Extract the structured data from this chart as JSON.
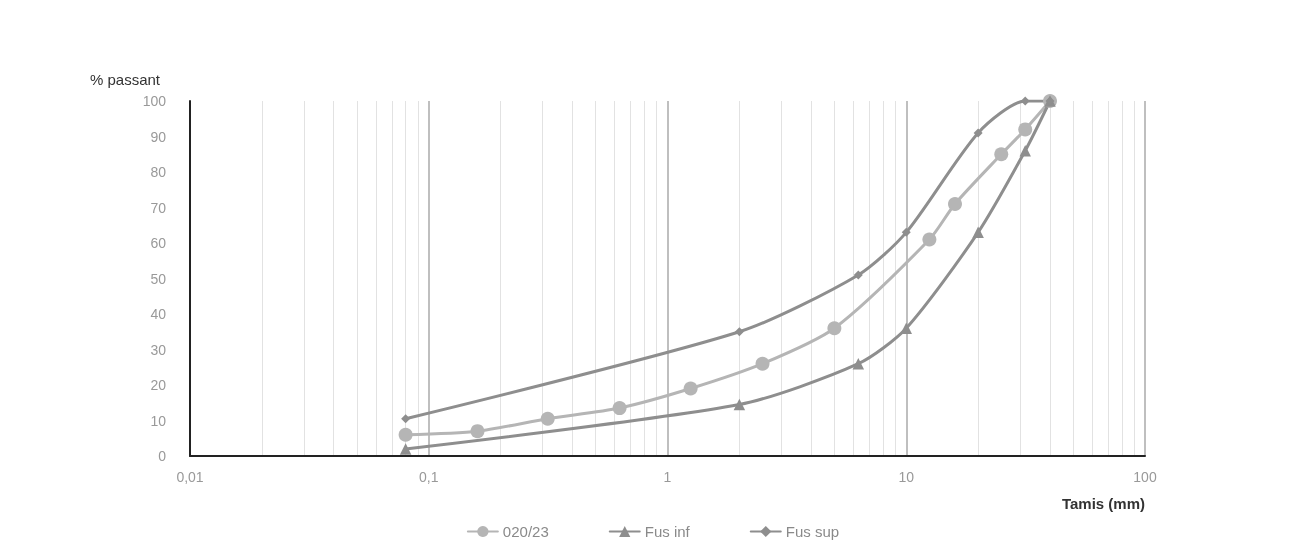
{
  "chart_data": {
    "type": "line",
    "xlabel": "Tamis (mm)",
    "ylabel": "% passant",
    "log": "x",
    "grid": "x",
    "legend": "bottom",
    "xlim": [
      0.01,
      100
    ],
    "xticks": [
      {
        "value": 0.01,
        "label": "0,01"
      },
      {
        "value": 0.1,
        "label": "0,1"
      },
      1,
      10,
      100
    ],
    "ylim": [
      0,
      100
    ],
    "yticks": [
      0,
      10,
      20,
      30,
      40,
      50,
      60,
      70,
      80,
      90,
      100
    ],
    "line_style": "solid",
    "series": [
      {
        "name": "020/23",
        "color": "#b5b5b5",
        "marker": "circle",
        "x": [
          0.08,
          0.16,
          0.315,
          0.63,
          1.25,
          2.5,
          5,
          12.5,
          16,
          25,
          31.5,
          40
        ],
        "values": [
          6,
          7,
          10.5,
          13.5,
          19,
          26,
          36,
          61,
          71,
          85,
          92,
          100
        ]
      },
      {
        "name": "Fus inf",
        "color": "#8e8e8e",
        "marker": "triangle",
        "x": [
          0.08,
          2,
          6.3,
          10,
          20,
          31.5,
          40
        ],
        "values": [
          2,
          14.5,
          26,
          36,
          63,
          86,
          100
        ]
      },
      {
        "name": "Fus sup",
        "color": "#8e8e8e",
        "marker": "diamond",
        "x": [
          0.08,
          2,
          6.3,
          10,
          20,
          31.5,
          40
        ],
        "values": [
          10.5,
          35,
          51,
          63,
          91,
          100,
          100
        ]
      }
    ]
  }
}
